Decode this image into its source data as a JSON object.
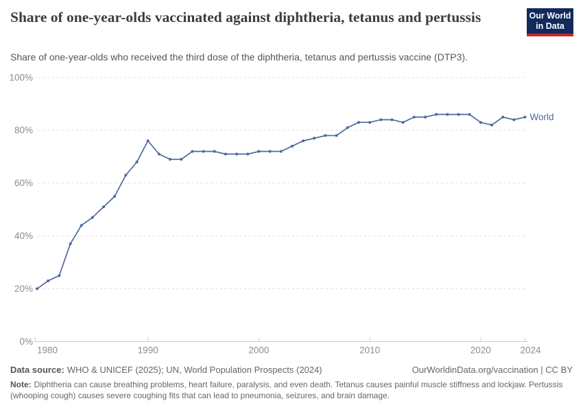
{
  "header": {
    "title": "Share of one-year-olds vaccinated against diphtheria, tetanus and pertussis",
    "subtitle": "Share of one-year-olds who received the third dose of the diphtheria, tetanus and pertussis vaccine (DTP3)."
  },
  "logo": {
    "line1": "Our World",
    "line2": "in Data",
    "bg_color": "#12295B",
    "bar_color": "#C6262E"
  },
  "chart_data": {
    "type": "line",
    "title": "Share of one-year-olds vaccinated against diphtheria, tetanus and pertussis",
    "xlabel": "",
    "ylabel": "",
    "xlim": [
      1980,
      2024
    ],
    "ylim": [
      0,
      100
    ],
    "grid": "horizontal-dashed",
    "legend_position": "end-of-line-label",
    "xticks": [
      1980,
      1990,
      2000,
      2010,
      2020,
      2024
    ],
    "yticks": [
      0,
      20,
      40,
      60,
      80,
      100
    ],
    "ytick_labels": [
      "0%",
      "20%",
      "40%",
      "60%",
      "80%",
      "100%"
    ],
    "x": [
      1980,
      1981,
      1982,
      1983,
      1984,
      1985,
      1986,
      1987,
      1988,
      1989,
      1990,
      1991,
      1992,
      1993,
      1994,
      1995,
      1996,
      1997,
      1998,
      1999,
      2000,
      2001,
      2002,
      2003,
      2004,
      2005,
      2006,
      2007,
      2008,
      2009,
      2010,
      2011,
      2012,
      2013,
      2014,
      2015,
      2016,
      2017,
      2018,
      2019,
      2020,
      2021,
      2022,
      2023,
      2024
    ],
    "series": [
      {
        "name": "World",
        "color": "#4C6A9C",
        "values": [
          20,
          23,
          25,
          37,
          44,
          47,
          51,
          55,
          63,
          68,
          76,
          71,
          69,
          69,
          72,
          72,
          72,
          71,
          71,
          71,
          72,
          72,
          72,
          74,
          76,
          77,
          78,
          78,
          81,
          83,
          83,
          84,
          84,
          83,
          85,
          85,
          86,
          86,
          86,
          86,
          83,
          82,
          85,
          84,
          85
        ]
      }
    ],
    "colors": {
      "grid": "#dddddd",
      "axis": "#cccccc",
      "tick_text": "#8c8c8c"
    }
  },
  "footer": {
    "data_source_label": "Data source:",
    "data_source_value": "WHO & UNICEF (2025); UN, World Population Prospects (2024)",
    "attribution": "OurWorldinData.org/vaccination | CC BY",
    "note_label": "Note:",
    "note_text": "Diphtheria can cause breathing problems, heart failure, paralysis, and even death. Tetanus causes painful muscle stiffness and lockjaw. Pertussis (whooping cough) causes severe coughing fits that can lead to pneumonia, seizures, and brain damage."
  }
}
